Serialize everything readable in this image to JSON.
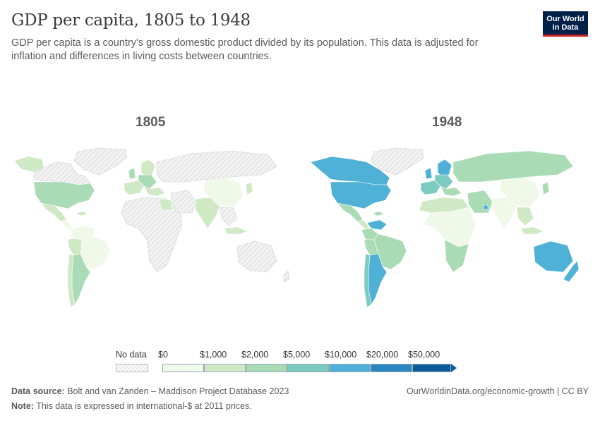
{
  "header": {
    "title": "GDP per capita, 1805 to 1948",
    "subtitle": "GDP per capita is a country's gross domestic product divided by its population. This data is adjusted for inflation and differences in living costs between countries.",
    "logo_line1": "Our World",
    "logo_line2": "in Data"
  },
  "panels": [
    {
      "label": "1805"
    },
    {
      "label": "1948"
    }
  ],
  "legend": {
    "no_data_label": "No data",
    "bins": [
      {
        "label": "$0",
        "color": "#f0f8e8"
      },
      {
        "label": "$1,000",
        "color": "#cfe9c5"
      },
      {
        "label": "$2,000",
        "color": "#a9dbb5"
      },
      {
        "label": "$5,000",
        "color": "#7ccbc0"
      },
      {
        "label": "$10,000",
        "color": "#4fb1d6"
      },
      {
        "label": "$20,000",
        "color": "#2a86c0"
      },
      {
        "label": "$50,000",
        "color": "#0d5a99"
      }
    ]
  },
  "colors": {
    "no_data_fill": "#ececec",
    "country_outline": "#ffffff"
  },
  "footer": {
    "source_label": "Data source:",
    "source_text": "Bolt and van Zanden – Maddison Project Database 2023",
    "note_label": "Note:",
    "note_text": "This data is expressed in international-$ at 2011 prices.",
    "url": "OurWorldinData.org/economic-growth | CC BY"
  }
}
